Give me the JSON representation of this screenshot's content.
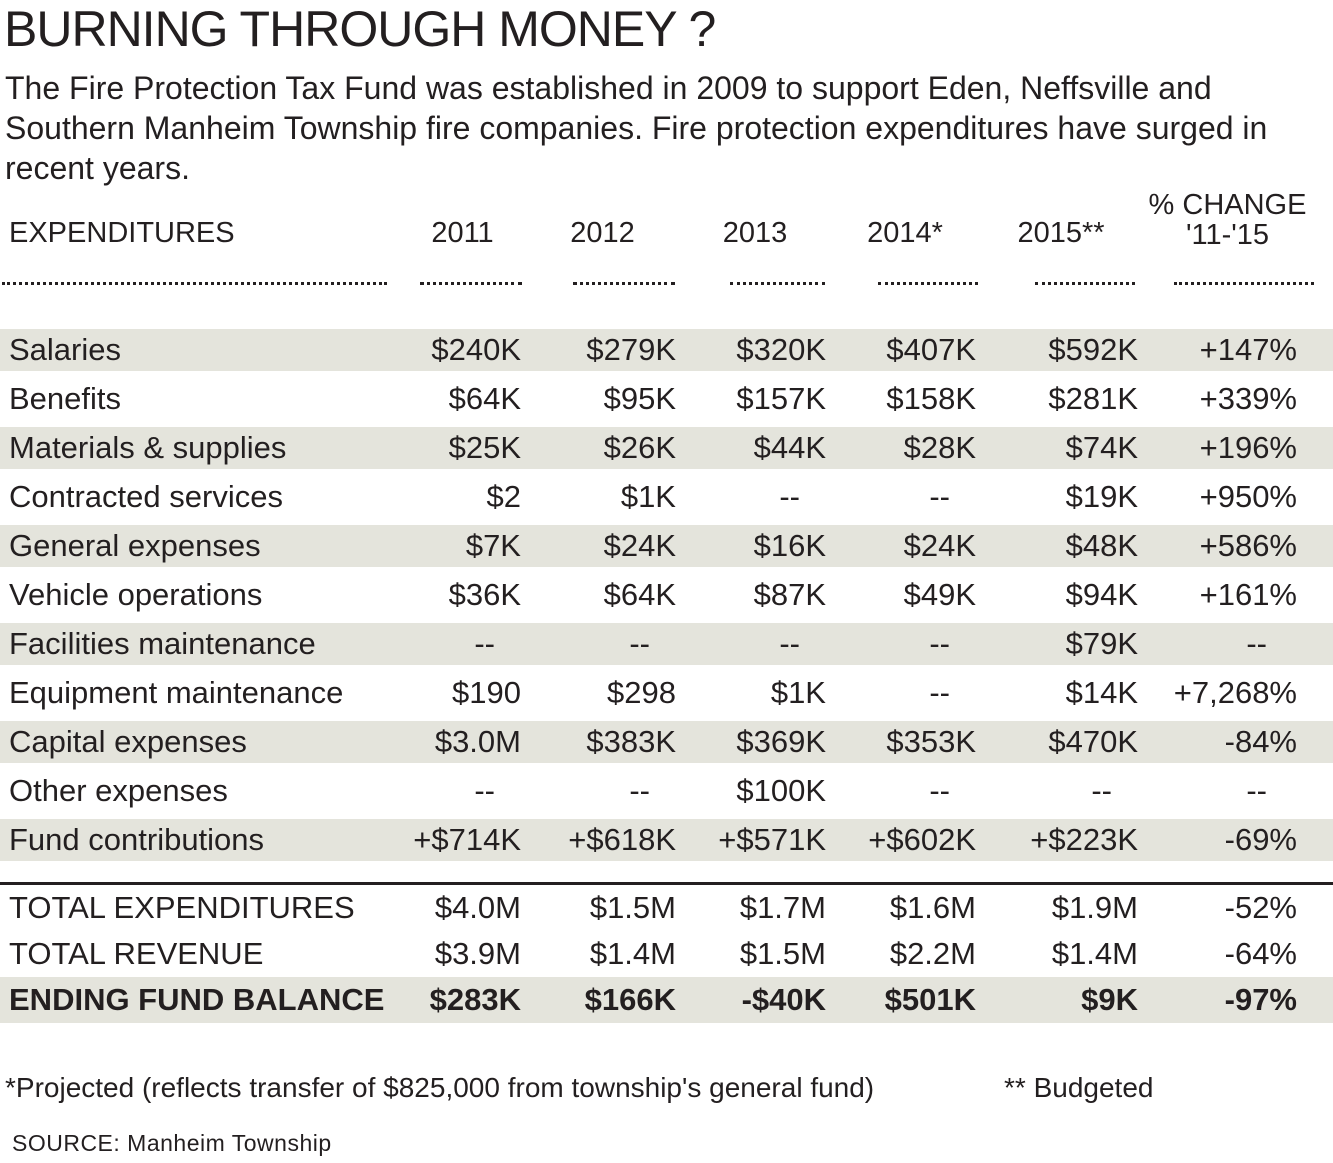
{
  "title": "BURNING THROUGH MONEY ?",
  "subtitle": "The Fire Protection Tax Fund was established in 2009 to support Eden, Neffsville and Southern Manheim Township fire companies. Fire protection expenditures have surged in recent years.",
  "chart_data": {
    "type": "table",
    "columns": [
      "EXPENDITURES",
      "2011",
      "2012",
      "2013",
      "2014*",
      "2015**",
      "% CHANGE '11-'15"
    ],
    "rows": [
      [
        "Salaries",
        "$240K",
        "$279K",
        "$320K",
        "$407K",
        "$592K",
        "+147%"
      ],
      [
        "Benefits",
        "$64K",
        "$95K",
        "$157K",
        "$158K",
        "$281K",
        "+339%"
      ],
      [
        "Materials & supplies",
        "$25K",
        "$26K",
        "$44K",
        "$28K",
        "$74K",
        "+196%"
      ],
      [
        "Contracted services",
        "$2",
        "$1K",
        "--",
        "--",
        "$19K",
        "+950%"
      ],
      [
        "General expenses",
        "$7K",
        "$24K",
        "$16K",
        "$24K",
        "$48K",
        "+586%"
      ],
      [
        "Vehicle operations",
        "$36K",
        "$64K",
        "$87K",
        "$49K",
        "$94K",
        "+161%"
      ],
      [
        "Facilities maintenance",
        "--",
        "--",
        "--",
        "--",
        "$79K",
        "--"
      ],
      [
        "Equipment maintenance",
        "$190",
        "$298",
        "$1K",
        "--",
        "$14K",
        "+7,268%"
      ],
      [
        "Capital expenses",
        "$3.0M",
        "$383K",
        "$369K",
        "$353K",
        "$470K",
        "-84%"
      ],
      [
        "Other expenses",
        "--",
        "--",
        "$100K",
        "--",
        "--",
        "--"
      ],
      [
        "Fund contributions",
        "+$714K",
        "+$618K",
        "+$571K",
        "+$602K",
        "+$223K",
        "-69%"
      ]
    ],
    "totals": [
      [
        "TOTAL EXPENDITURES",
        "$4.0M",
        "$1.5M",
        "$1.7M",
        "$1.6M",
        "$1.9M",
        "-52%"
      ],
      [
        "TOTAL REVENUE",
        "$3.9M",
        "$1.4M",
        "$1.5M",
        "$2.2M",
        "$1.4M",
        "-64%"
      ],
      [
        "ENDING FUND BALANCE",
        "$283K",
        "$166K",
        "-$40K",
        "$501K",
        "$9K",
        "-97%"
      ]
    ],
    "stripe_color": "#e4e4dc"
  },
  "footnote": "*Projected (reflects transfer of $825,000 from township's general fund)",
  "footnote2": "** Budgeted",
  "source": "SOURCE:  Manheim Township"
}
